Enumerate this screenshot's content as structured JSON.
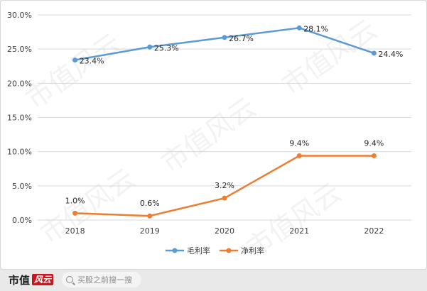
{
  "chart_data": {
    "type": "line",
    "title": "",
    "xlabel": "",
    "ylabel": "",
    "categories": [
      "2018",
      "2019",
      "2020",
      "2021",
      "2022"
    ],
    "ylim": [
      0,
      30
    ],
    "yticks": [
      0,
      5,
      10,
      15,
      20,
      25,
      30
    ],
    "ytick_labels": [
      "0.0%",
      "5.0%",
      "10.0%",
      "15.0%",
      "20.0%",
      "25.0%",
      "30.0%"
    ],
    "grid": "horizontal",
    "legend_position": "bottom",
    "series": [
      {
        "name": "毛利率",
        "color": "#5b9bd5",
        "values": [
          23.4,
          25.3,
          26.7,
          28.1,
          24.4
        ],
        "labels": [
          "23.4%",
          "25.3%",
          "26.7%",
          "28.1%",
          "24.4%"
        ]
      },
      {
        "name": "净利率",
        "color": "#ed7d31",
        "values": [
          1.0,
          0.6,
          3.2,
          9.4,
          9.4
        ],
        "labels": [
          "1.0%",
          "0.6%",
          "3.2%",
          "9.4%",
          "9.4%"
        ]
      }
    ]
  },
  "watermark": "市值风云",
  "footer": {
    "brand_text": "市值",
    "brand_mark": "风云",
    "search_placeholder": "买股之前搜一搜",
    "search_icon": "search-icon"
  }
}
